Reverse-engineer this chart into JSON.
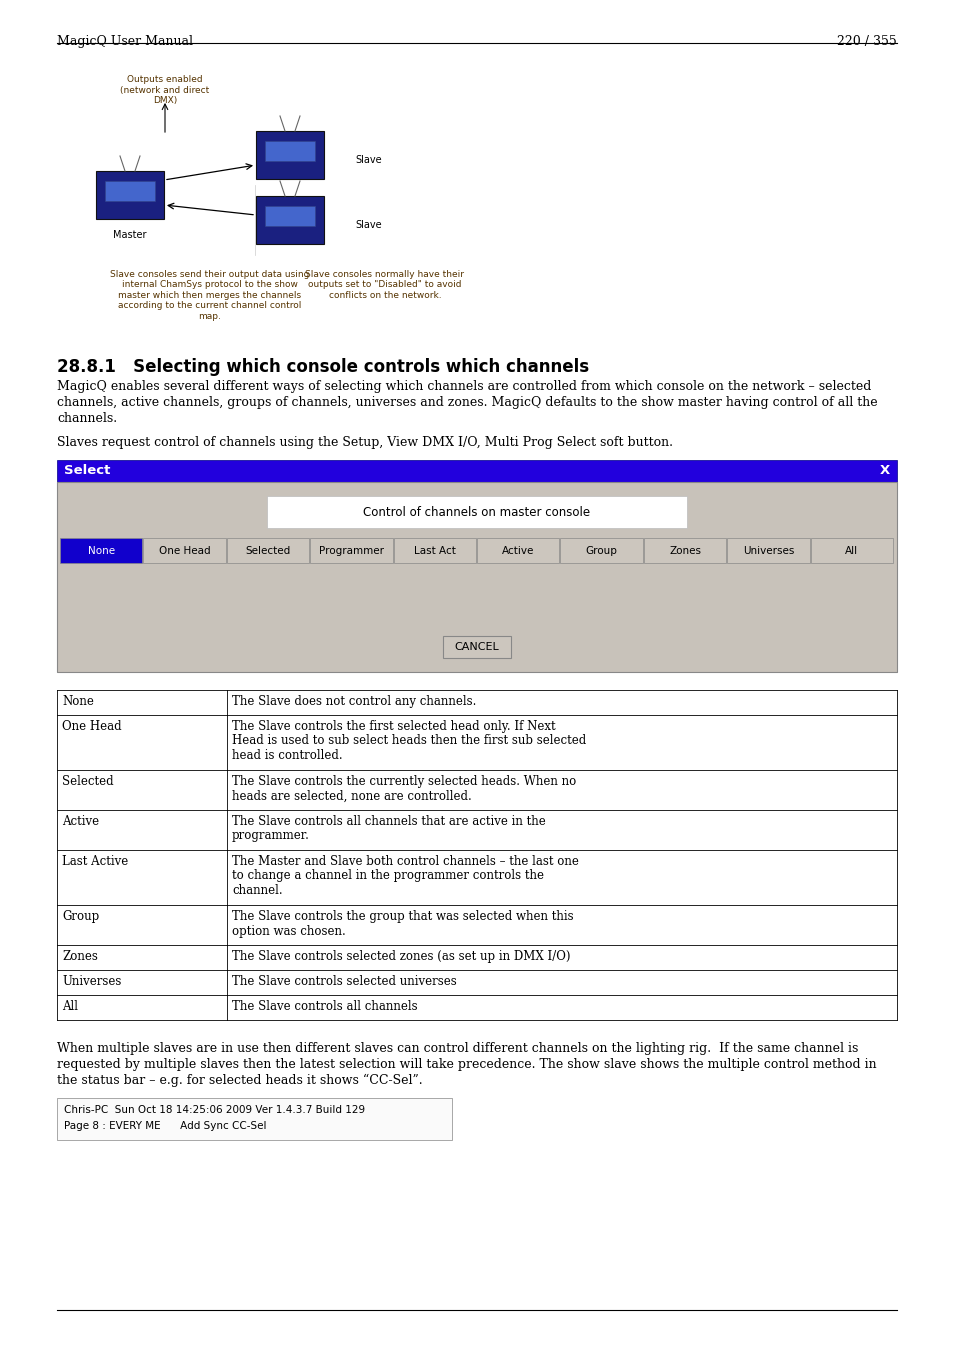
{
  "header_left": "MagicQ User Manual",
  "header_right": "220 / 355",
  "section_title": "28.8.1   Selecting which console controls which channels",
  "para1_lines": [
    "MagicQ enables several different ways of selecting which channels are controlled from which console on the network – selected",
    "channels, active channels, groups of channels, universes and zones. MagicQ defaults to the show master having control of all the",
    "channels."
  ],
  "para2": "Slaves request control of channels using the Setup, View DMX I/O, Multi Prog Select soft button.",
  "select_title": "Select",
  "select_close": "X",
  "select_display_text": "Control of channels on master console",
  "select_buttons": [
    "None",
    "One Head",
    "Selected",
    "Programmer",
    "Last Act",
    "Active",
    "Group",
    "Zones",
    "Universes",
    "All"
  ],
  "select_active_button": 0,
  "cancel_button": "CANCEL",
  "table_rows": [
    [
      "None",
      "The Slave does not control any channels."
    ],
    [
      "One Head",
      "The Slave controls the first selected head only. If Next\nHead is used to sub select heads then the first sub selected\nhead is controlled."
    ],
    [
      "Selected",
      "The Slave controls the currently selected heads. When no\nheads are selected, none are controlled."
    ],
    [
      "Active",
      "The Slave controls all channels that are active in the\nprogrammer."
    ],
    [
      "Last Active",
      "The Master and Slave both control channels – the last one\nto change a channel in the programmer controls the\nchannel."
    ],
    [
      "Group",
      "The Slave controls the group that was selected when this\noption was chosen."
    ],
    [
      "Zones",
      "The Slave controls selected zones (as set up in DMX I/O)"
    ],
    [
      "Universes",
      "The Slave controls selected universes"
    ],
    [
      "All",
      "The Slave controls all channels"
    ]
  ],
  "para3_lines": [
    "When multiple slaves are in use then different slaves can control different channels on the lighting rig.  If the same channel is",
    "requested by multiple slaves then the latest selection will take precedence. The show slave shows the multiple control method in",
    "the status bar – e.g. for selected heads it shows “CC-Sel”."
  ],
  "status_line1": "Chris-PC  Sun Oct 18 14:25:06 2009 Ver 1.4.3.7 Build 129",
  "status_line2": "Page 8 : EVERY ME      Add Sync CC-Sel",
  "diagram_labels": {
    "outputs_enabled": "Outputs enabled\n(network and direct\nDMX)",
    "master": "Master",
    "slave1": "Slave",
    "slave2": "Slave",
    "caption_left": "Slave consoles send their output data using\ninternal ChamSys protocol to the show\nmaster which then merges the channels\naccording to the current channel control\nmap.",
    "caption_right": "Slave consoles normally have their\noutputs set to \"Disabled\" to avoid\nconflicts on the network."
  },
  "bg_color": "#ffffff",
  "text_color": "#000000",
  "header_line_color": "#000000",
  "select_bar_color": "#2200dd",
  "select_bar_text_color": "#ffffff",
  "select_bg_color": "#c8c2ba",
  "select_display_bg": "#ffffff",
  "select_button_bg": "#ccc6be",
  "select_button_active_bg": "#1100cc",
  "select_button_active_text": "#ffffff",
  "select_button_text": "#000000",
  "select_cancel_bg": "#ccc6be",
  "table_border_color": "#000000",
  "footer_line_color": "#000000",
  "status_box_border": "#999999",
  "diagram_arrow_color": "#000000",
  "diagram_text_color": "#333333",
  "caption_left_color": "#553300",
  "caption_right_color": "#553300"
}
